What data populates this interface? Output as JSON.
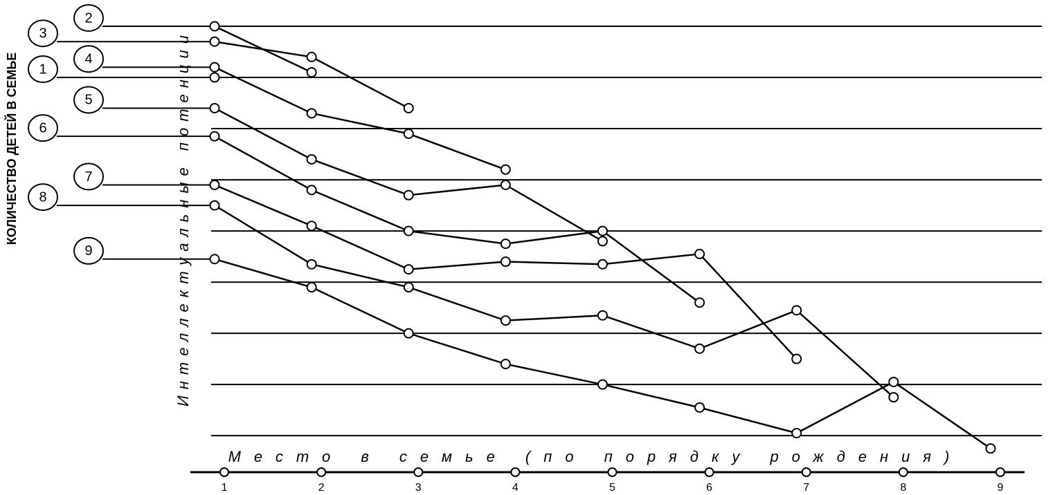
{
  "chart_data": {
    "type": "line",
    "title": "КОЛИЧЕСТВО ДЕТЕЙ В СЕМЬЕ",
    "y_label": "Интеллектуальные потенции",
    "x_label": "Место в семье (по порядку рождения)",
    "color": "#000000",
    "x": [
      1,
      2,
      3,
      4,
      5,
      6,
      7,
      8,
      9
    ],
    "xlim": [
      0.75,
      9.35
    ],
    "xticks": [
      1,
      2,
      3,
      4,
      5,
      6,
      7,
      8,
      9
    ],
    "ylim": [
      -0.7,
      8.5
    ],
    "yticks": [
      0,
      1,
      2,
      3,
      4,
      5,
      6,
      7,
      8
    ],
    "grid": true,
    "series": [
      {
        "name": "1",
        "values": [
          7.0,
          null,
          null,
          null,
          null,
          null,
          null,
          null,
          null
        ]
      },
      {
        "name": "2",
        "values": [
          8.0,
          7.1,
          null,
          null,
          null,
          null,
          null,
          null,
          null
        ]
      },
      {
        "name": "3",
        "values": [
          7.7,
          7.4,
          6.4,
          null,
          null,
          null,
          null,
          null,
          null
        ]
      },
      {
        "name": "4",
        "values": [
          7.2,
          6.3,
          5.9,
          5.2,
          null,
          null,
          null,
          null,
          null
        ]
      },
      {
        "name": "5",
        "values": [
          6.4,
          5.4,
          4.7,
          4.9,
          3.8,
          null,
          null,
          null,
          null
        ]
      },
      {
        "name": "6",
        "values": [
          5.85,
          4.8,
          4.0,
          3.75,
          4.0,
          2.6,
          null,
          null,
          null
        ]
      },
      {
        "name": "7",
        "values": [
          4.9,
          4.1,
          3.25,
          3.4,
          3.35,
          3.55,
          1.5,
          null,
          null
        ]
      },
      {
        "name": "8",
        "values": [
          4.5,
          3.35,
          2.9,
          2.25,
          2.35,
          1.7,
          2.45,
          0.75,
          null
        ]
      },
      {
        "name": "9",
        "values": [
          3.45,
          2.9,
          2.0,
          1.4,
          1.0,
          0.55,
          0.05,
          1.05,
          -0.25
        ]
      }
    ]
  }
}
